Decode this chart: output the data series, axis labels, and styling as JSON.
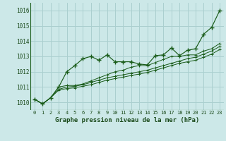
{
  "title": "Graphe pression niveau de la mer (hPa)",
  "background_color": "#cce8e8",
  "grid_color": "#aacfcf",
  "line_color": "#1a5c1a",
  "text_color": "#1a4a1a",
  "x_labels": [
    "0",
    "1",
    "2",
    "3",
    "4",
    "5",
    "6",
    "7",
    "8",
    "9",
    "10",
    "11",
    "12",
    "13",
    "14",
    "15",
    "16",
    "17",
    "18",
    "19",
    "20",
    "21",
    "22",
    "23"
  ],
  "y_min": 1009.5,
  "y_max": 1016.5,
  "y_ticks": [
    1010,
    1011,
    1012,
    1013,
    1014,
    1015,
    1016
  ],
  "series": [
    [
      1010.2,
      1009.9,
      1010.3,
      1011.0,
      1012.0,
      1012.4,
      1012.85,
      1013.0,
      1012.75,
      1013.1,
      1012.65,
      1012.65,
      1012.65,
      1012.5,
      1012.45,
      1013.05,
      1013.1,
      1013.55,
      1013.05,
      1013.4,
      1013.5,
      1014.45,
      1014.9,
      1016.0
    ],
    [
      1010.2,
      1009.9,
      1010.3,
      1011.0,
      1011.1,
      1011.1,
      1011.2,
      1011.4,
      1011.6,
      1011.8,
      1012.0,
      1012.1,
      1012.3,
      1012.4,
      1012.4,
      1012.6,
      1012.8,
      1013.0,
      1013.0,
      1013.1,
      1013.1,
      1013.35,
      1013.5,
      1013.85
    ],
    [
      1010.2,
      1009.9,
      1010.3,
      1010.85,
      1011.0,
      1011.05,
      1011.15,
      1011.3,
      1011.45,
      1011.6,
      1011.7,
      1011.8,
      1011.9,
      1012.0,
      1012.1,
      1012.25,
      1012.4,
      1012.55,
      1012.7,
      1012.85,
      1012.95,
      1013.15,
      1013.35,
      1013.65
    ],
    [
      1010.2,
      1009.9,
      1010.3,
      1010.8,
      1010.9,
      1010.95,
      1011.05,
      1011.15,
      1011.3,
      1011.45,
      1011.55,
      1011.65,
      1011.75,
      1011.85,
      1011.95,
      1012.1,
      1012.25,
      1012.4,
      1012.55,
      1012.65,
      1012.75,
      1012.95,
      1013.15,
      1013.45
    ]
  ]
}
